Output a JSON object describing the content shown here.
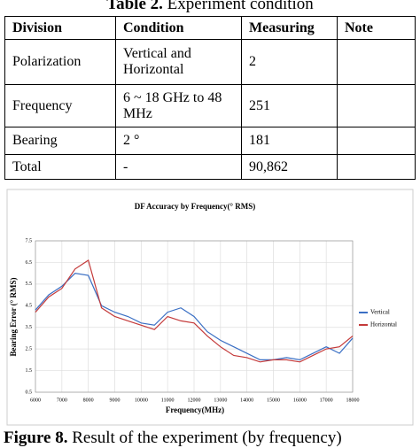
{
  "caption": {
    "label": "Table 2.",
    "text": "Experiment condition"
  },
  "table": {
    "header": [
      "Division",
      "Condition",
      "Measuring",
      "Note"
    ],
    "rows": [
      [
        "Polarization",
        "Vertical and Horizontal",
        "2"
      ],
      [
        "Frequency",
        "6 ~ 18 GHz to 48 MHz",
        "251"
      ],
      [
        "Bearing",
        "2 °",
        "181"
      ],
      [
        "Total",
        "-",
        "90,862"
      ]
    ]
  },
  "chart_data": {
    "type": "line",
    "title": "DF Accuracy by Frequency(° RMS)",
    "x_label": "Frequency(MHz)",
    "y_label": "Bearing Error (° RMS)",
    "x": [
      6000,
      6500,
      7000,
      7500,
      8000,
      8500,
      9000,
      9500,
      10000,
      10500,
      11000,
      11500,
      12000,
      12500,
      13000,
      13500,
      14000,
      14500,
      15000,
      15500,
      16000,
      16500,
      17000,
      17500,
      18000
    ],
    "series": [
      {
        "name": "Vertical",
        "color": "#3a6fc4",
        "values": [
          4.3,
          5.0,
          5.4,
          6.0,
          5.9,
          4.5,
          4.2,
          4.0,
          3.7,
          3.6,
          4.2,
          4.4,
          4.0,
          3.3,
          2.9,
          2.6,
          2.3,
          2.0,
          2.0,
          2.1,
          2.0,
          2.3,
          2.6,
          2.3,
          3.0
        ]
      },
      {
        "name": "Horizontal",
        "color": "#c43a3a",
        "values": [
          4.2,
          4.9,
          5.3,
          6.2,
          6.6,
          4.4,
          4.0,
          3.8,
          3.6,
          3.4,
          4.0,
          3.8,
          3.7,
          3.1,
          2.6,
          2.2,
          2.1,
          1.9,
          2.0,
          2.0,
          1.9,
          2.2,
          2.5,
          2.6,
          3.1
        ]
      }
    ],
    "xlim": [
      6000,
      18000
    ],
    "xticks": [
      6000,
      7000,
      8000,
      9000,
      10000,
      11000,
      12000,
      13000,
      14000,
      15000,
      16000,
      17000,
      18000
    ],
    "ylim": [
      0.5,
      7.5
    ],
    "yticks": [
      0.5,
      1.5,
      2.5,
      3.5,
      4.5,
      5.5,
      6.5,
      7.5
    ],
    "grid": true,
    "legend": "right"
  },
  "figure_caption": {
    "label": "Figure 8.",
    "text": "Result of the experiment (by frequency)"
  }
}
